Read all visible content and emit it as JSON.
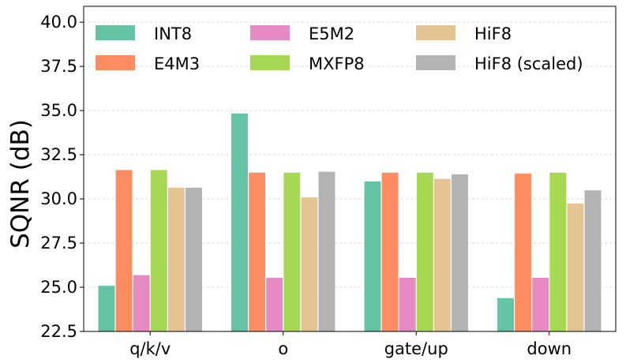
{
  "chart_data": {
    "type": "bar",
    "title": "",
    "xlabel": "",
    "ylabel": "SQNR (dB)",
    "ylim": [
      22.5,
      40.9
    ],
    "yticks": [
      "22.5",
      "25.0",
      "27.5",
      "30.0",
      "32.5",
      "35.0",
      "37.5",
      "40.0"
    ],
    "grid": true,
    "legend_placement": "top",
    "categories": [
      "q/k/v",
      "o",
      "gate/up",
      "down"
    ],
    "series": [
      {
        "name": "INT8",
        "color": "#66c2a5",
        "values": [
          25.1,
          34.85,
          31.0,
          24.4
        ]
      },
      {
        "name": "E4M3",
        "color": "#fc8d62",
        "values": [
          31.65,
          31.5,
          31.5,
          31.45
        ]
      },
      {
        "name": "E5M2",
        "color": "#e78ac3",
        "values": [
          25.7,
          25.55,
          25.55,
          25.55
        ]
      },
      {
        "name": "MXFP8",
        "color": "#a6d854",
        "values": [
          31.65,
          31.5,
          31.5,
          31.5
        ]
      },
      {
        "name": "HiF8",
        "color": "#e5c494",
        "values": [
          30.65,
          30.1,
          31.15,
          29.75
        ]
      },
      {
        "name": "HiF8 (scaled)",
        "color": "#b3b3b3",
        "values": [
          30.65,
          31.55,
          31.4,
          30.5
        ]
      }
    ]
  }
}
